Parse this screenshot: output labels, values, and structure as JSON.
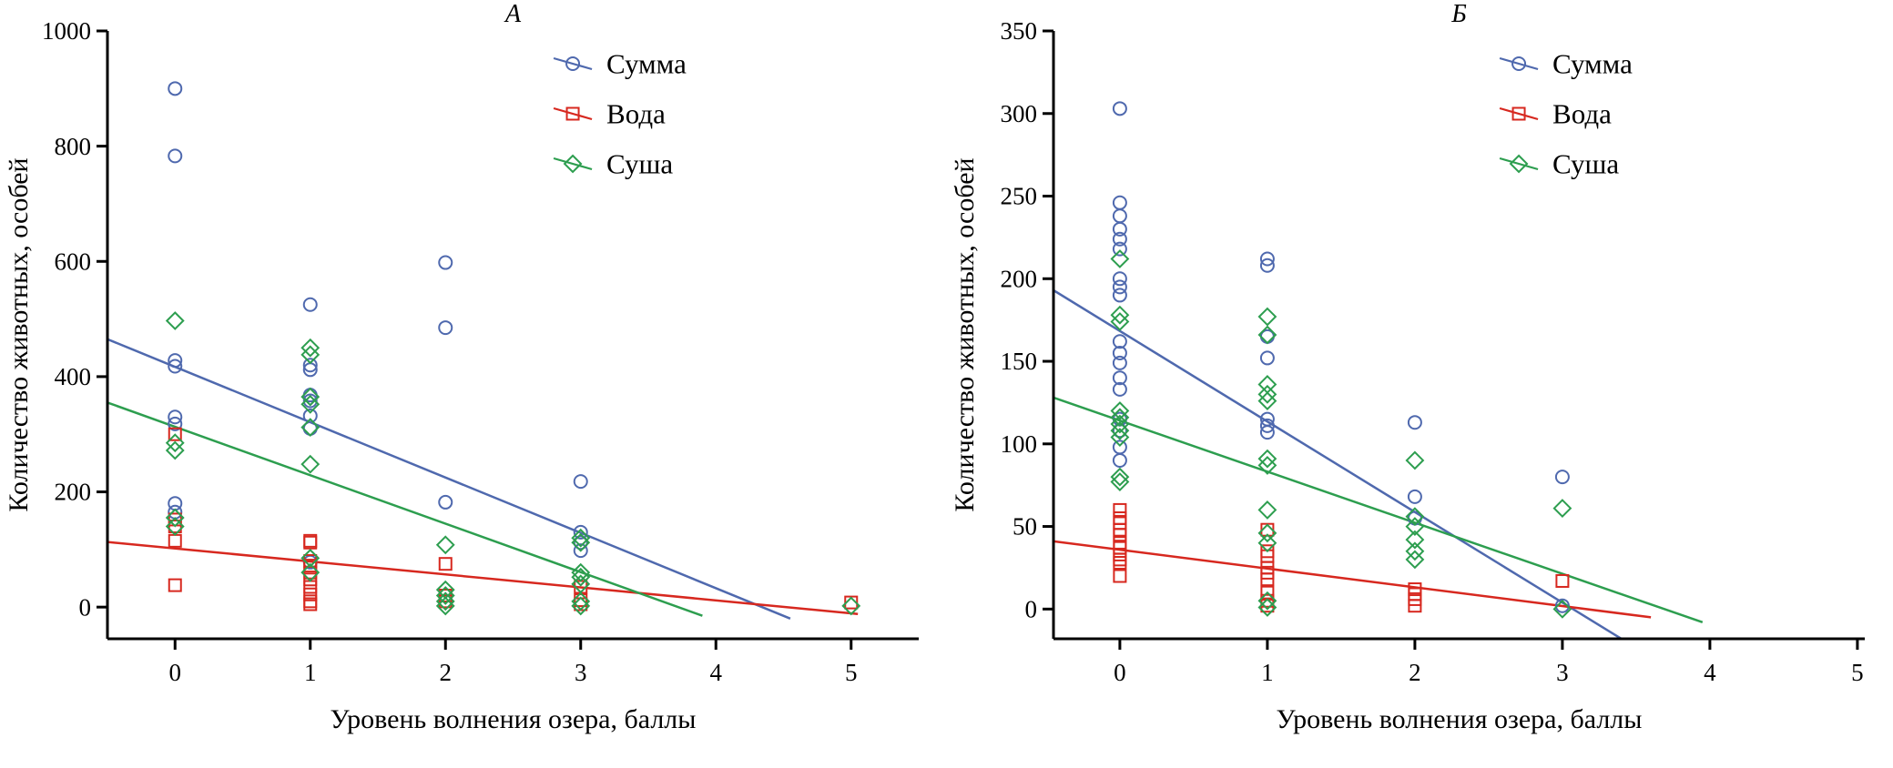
{
  "figure_bg": "#ffffff",
  "text_color": "#000000",
  "chart_data": [
    {
      "panel_label": "А",
      "type": "scatter",
      "xlabel": "Уровень волнения озера, баллы",
      "ylabel": "Количество животных, особей",
      "xlim": [
        -0.5,
        5.5
      ],
      "ylim": [
        -55,
        1000
      ],
      "xticks": [
        0,
        1,
        2,
        3,
        4,
        5
      ],
      "yticks": [
        0,
        200,
        400,
        600,
        800,
        1000
      ],
      "grid": false,
      "legend_position": "upper right",
      "series": [
        {
          "name": "Сумма",
          "marker": "circle",
          "color": "#4f69ae",
          "points": [
            [
              0,
              900
            ],
            [
              0,
              783
            ],
            [
              0,
              428
            ],
            [
              0,
              418
            ],
            [
              0,
              330
            ],
            [
              0,
              318
            ],
            [
              0,
              180
            ],
            [
              0,
              165
            ],
            [
              1,
              525
            ],
            [
              1,
              420
            ],
            [
              1,
              412
            ],
            [
              1,
              368
            ],
            [
              1,
              358
            ],
            [
              1,
              332
            ],
            [
              1,
              310
            ],
            [
              1,
              78
            ],
            [
              2,
              598
            ],
            [
              2,
              485
            ],
            [
              2,
              182
            ],
            [
              3,
              218
            ],
            [
              3,
              130
            ],
            [
              3,
              112
            ],
            [
              3,
              98
            ]
          ],
          "trendline": {
            "x1": -0.5,
            "y1": 465,
            "x2": 4.55,
            "y2": -20
          }
        },
        {
          "name": "Вода",
          "marker": "square",
          "color": "#d7281f",
          "points": [
            [
              0,
              300
            ],
            [
              0,
              152
            ],
            [
              0,
              140
            ],
            [
              0,
              115
            ],
            [
              0,
              38
            ],
            [
              1,
              115
            ],
            [
              1,
              112
            ],
            [
              1,
              80
            ],
            [
              1,
              72
            ],
            [
              1,
              60
            ],
            [
              1,
              48
            ],
            [
              1,
              35
            ],
            [
              1,
              22
            ],
            [
              1,
              10
            ],
            [
              1,
              5
            ],
            [
              2,
              75
            ],
            [
              2,
              20
            ],
            [
              2,
              10
            ],
            [
              3,
              35
            ],
            [
              3,
              12
            ],
            [
              3,
              5
            ],
            [
              5,
              8
            ]
          ],
          "trendline": {
            "x1": -0.5,
            "y1": 113,
            "x2": 5.05,
            "y2": -12
          }
        },
        {
          "name": "Суша",
          "marker": "diamond",
          "color": "#2d9e4f",
          "points": [
            [
              0,
              497
            ],
            [
              0,
              285
            ],
            [
              0,
              272
            ],
            [
              0,
              155
            ],
            [
              0,
              140
            ],
            [
              1,
              450
            ],
            [
              1,
              438
            ],
            [
              1,
              365
            ],
            [
              1,
              352
            ],
            [
              1,
              312
            ],
            [
              1,
              248
            ],
            [
              1,
              85
            ],
            [
              1,
              60
            ],
            [
              2,
              108
            ],
            [
              2,
              30
            ],
            [
              2,
              20
            ],
            [
              2,
              10
            ],
            [
              2,
              2
            ],
            [
              3,
              120
            ],
            [
              3,
              112
            ],
            [
              3,
              60
            ],
            [
              3,
              52
            ],
            [
              3,
              40
            ],
            [
              3,
              10
            ],
            [
              3,
              2
            ],
            [
              5,
              2
            ]
          ],
          "trendline": {
            "x1": -0.5,
            "y1": 355,
            "x2": 3.9,
            "y2": -15
          }
        }
      ]
    },
    {
      "panel_label": "Б",
      "type": "scatter",
      "xlabel": "Уровень волнения озера, баллы",
      "ylabel": "Количество животных, особей",
      "xlim": [
        -0.45,
        5.05
      ],
      "ylim": [
        -18,
        350
      ],
      "xticks": [
        0,
        1,
        2,
        3,
        4,
        5
      ],
      "yticks": [
        0,
        50,
        100,
        150,
        200,
        250,
        300,
        350
      ],
      "grid": false,
      "legend_position": "upper right",
      "series": [
        {
          "name": "Сумма",
          "marker": "circle",
          "color": "#4f69ae",
          "points": [
            [
              0,
              303
            ],
            [
              0,
              246
            ],
            [
              0,
              238
            ],
            [
              0,
              230
            ],
            [
              0,
              224
            ],
            [
              0,
              218
            ],
            [
              0,
              200
            ],
            [
              0,
              195
            ],
            [
              0,
              190
            ],
            [
              0,
              162
            ],
            [
              0,
              155
            ],
            [
              0,
              149
            ],
            [
              0,
              140
            ],
            [
              0,
              133
            ],
            [
              0,
              115
            ],
            [
              0,
              108
            ],
            [
              0,
              98
            ],
            [
              0,
              90
            ],
            [
              1,
              212
            ],
            [
              1,
              208
            ],
            [
              1,
              165
            ],
            [
              1,
              152
            ],
            [
              1,
              115
            ],
            [
              1,
              111
            ],
            [
              1,
              107
            ],
            [
              2,
              113
            ],
            [
              2,
              68
            ],
            [
              2,
              55
            ],
            [
              3,
              80
            ],
            [
              3,
              2
            ]
          ],
          "trendline": {
            "x1": -0.45,
            "y1": 193,
            "x2": 3.4,
            "y2": -18
          }
        },
        {
          "name": "Вода",
          "marker": "square",
          "color": "#d7281f",
          "points": [
            [
              0,
              60
            ],
            [
              0,
              55
            ],
            [
              0,
              52
            ],
            [
              0,
              48
            ],
            [
              0,
              45
            ],
            [
              0,
              40
            ],
            [
              0,
              37
            ],
            [
              0,
              33
            ],
            [
              0,
              30
            ],
            [
              0,
              28
            ],
            [
              0,
              20
            ],
            [
              1,
              48
            ],
            [
              1,
              35
            ],
            [
              1,
              32
            ],
            [
              1,
              25
            ],
            [
              1,
              22
            ],
            [
              1,
              18
            ],
            [
              1,
              10
            ],
            [
              1,
              5
            ],
            [
              1,
              2
            ],
            [
              2,
              12
            ],
            [
              2,
              9
            ],
            [
              2,
              6
            ],
            [
              2,
              2
            ],
            [
              3,
              17
            ]
          ],
          "trendline": {
            "x1": -0.45,
            "y1": 41,
            "x2": 3.6,
            "y2": -5
          }
        },
        {
          "name": "Суша",
          "marker": "diamond",
          "color": "#2d9e4f",
          "points": [
            [
              0,
              212
            ],
            [
              0,
              178
            ],
            [
              0,
              174
            ],
            [
              0,
              120
            ],
            [
              0,
              116
            ],
            [
              0,
              112
            ],
            [
              0,
              108
            ],
            [
              0,
              104
            ],
            [
              0,
              80
            ],
            [
              0,
              77
            ],
            [
              1,
              177
            ],
            [
              1,
              166
            ],
            [
              1,
              136
            ],
            [
              1,
              130
            ],
            [
              1,
              126
            ],
            [
              1,
              91
            ],
            [
              1,
              87
            ],
            [
              1,
              60
            ],
            [
              1,
              46
            ],
            [
              1,
              40
            ],
            [
              1,
              5
            ],
            [
              1,
              1
            ],
            [
              2,
              90
            ],
            [
              2,
              56
            ],
            [
              2,
              50
            ],
            [
              2,
              42
            ],
            [
              2,
              35
            ],
            [
              2,
              30
            ],
            [
              3,
              61
            ],
            [
              3,
              0
            ]
          ],
          "trendline": {
            "x1": -0.45,
            "y1": 128,
            "x2": 3.95,
            "y2": -8
          }
        }
      ]
    }
  ]
}
